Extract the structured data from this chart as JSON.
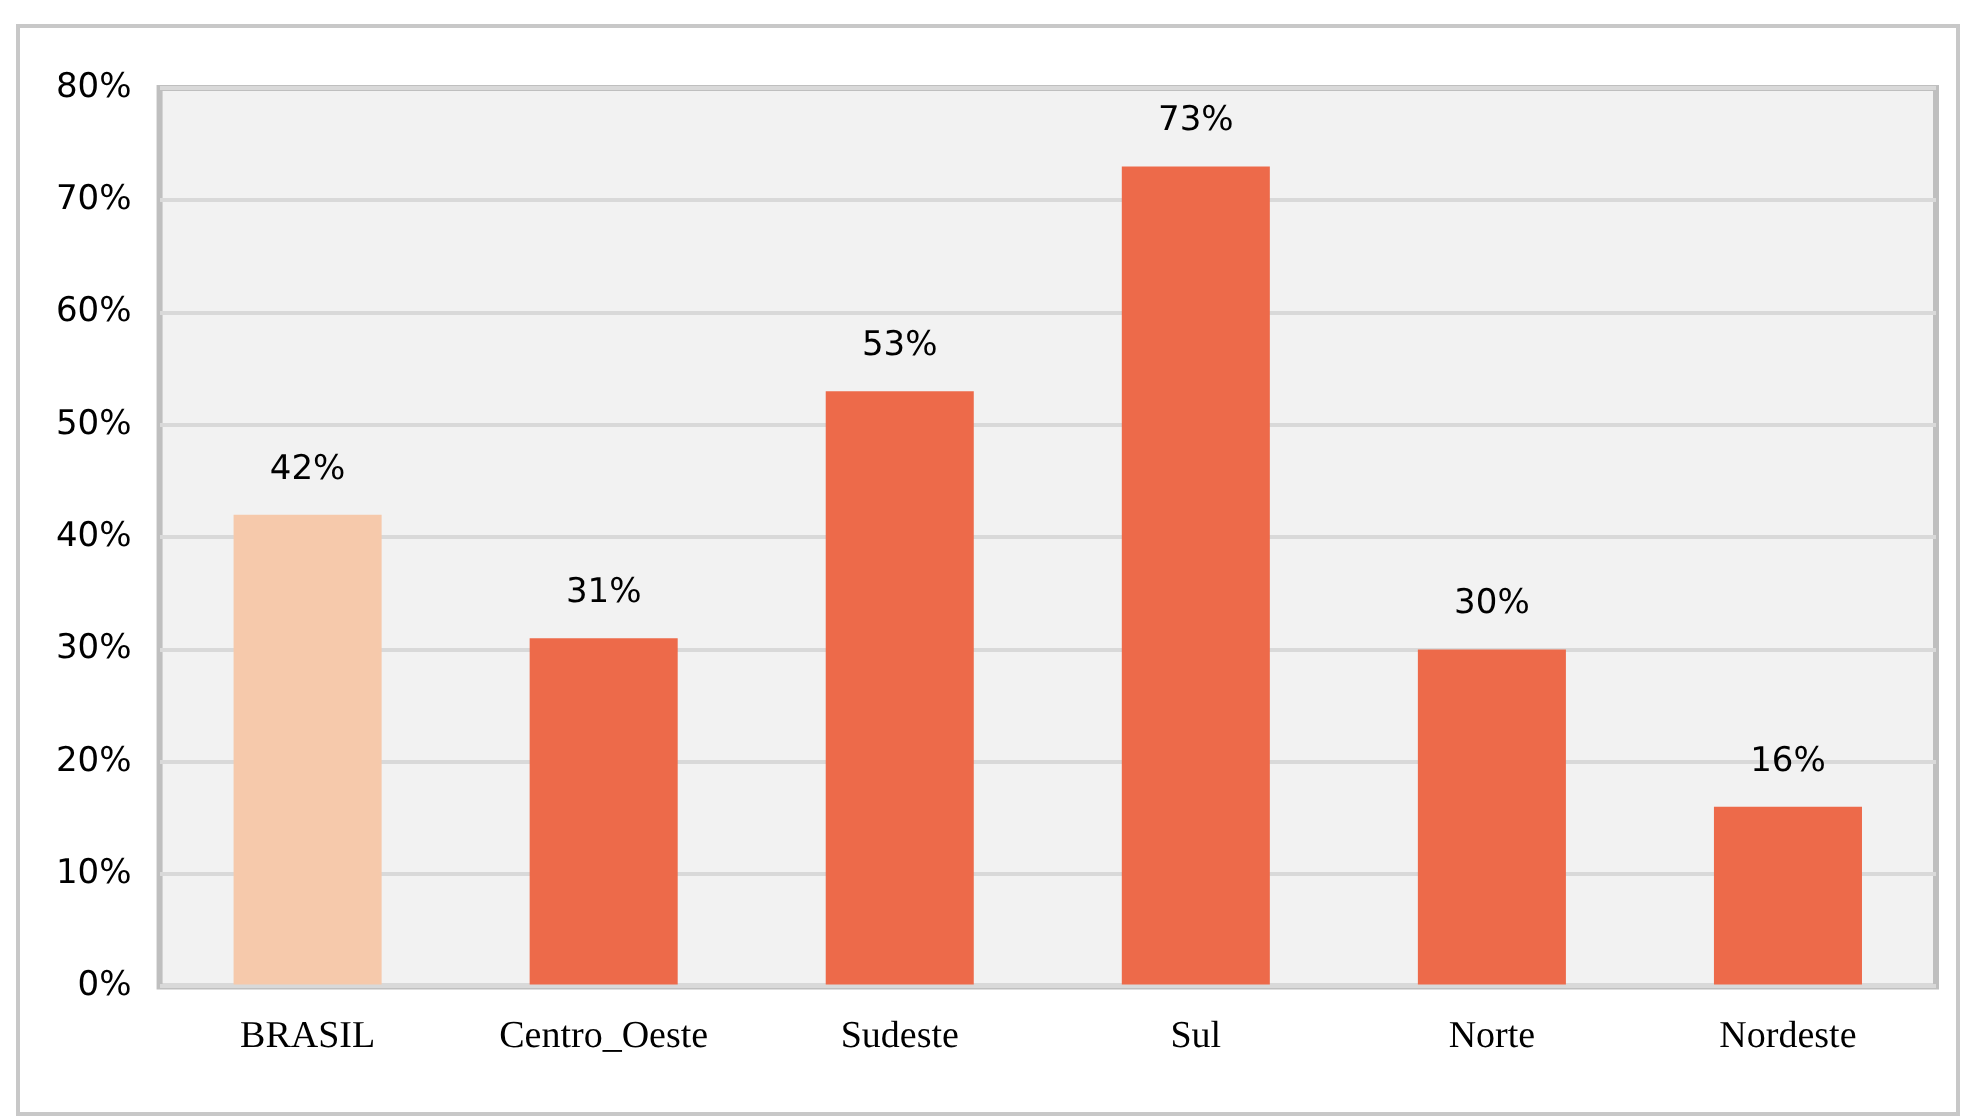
{
  "chart_data": {
    "type": "bar",
    "categories": [
      "BRASIL",
      "Centro_Oeste",
      "Sudeste",
      "Sul",
      "Norte",
      "Nordeste"
    ],
    "values": [
      42,
      31,
      53,
      73,
      30,
      16
    ],
    "colors": [
      "#f6c9ab",
      "#ed6a4a",
      "#ed6a4a",
      "#ed6a4a",
      "#ed6a4a",
      "#ed6a4a"
    ],
    "value_labels": [
      "42%",
      "31%",
      "53%",
      "73%",
      "30%",
      "16%"
    ],
    "ylim": [
      0,
      80
    ],
    "yticks": [
      {
        "value": 0,
        "label": "0%"
      },
      {
        "value": 10,
        "label": "10%"
      },
      {
        "value": 20,
        "label": "20%"
      },
      {
        "value": 30,
        "label": "30%"
      },
      {
        "value": 40,
        "label": "40%"
      },
      {
        "value": 50,
        "label": "50%"
      },
      {
        "value": 60,
        "label": "60%"
      },
      {
        "value": 70,
        "label": "70%"
      },
      {
        "value": 80,
        "label": "80%"
      }
    ],
    "grid": "y",
    "legend": false
  }
}
